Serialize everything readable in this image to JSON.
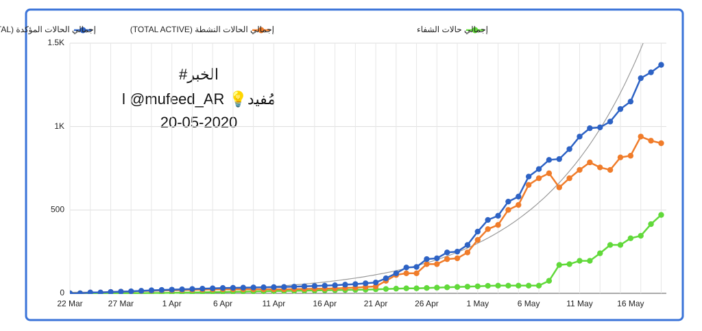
{
  "chart_data": {
    "type": "line",
    "annotations": [
      "#الخبر",
      "مُفيد💡 l @mufeed_AR",
      "20-05-2020"
    ],
    "categories": [
      "22 Mar",
      null,
      null,
      null,
      null,
      "27 Mar",
      null,
      null,
      null,
      null,
      "1 Apr",
      null,
      null,
      null,
      null,
      "6 Apr",
      null,
      null,
      null,
      null,
      "11 Apr",
      null,
      null,
      null,
      null,
      "16 Apr",
      null,
      null,
      null,
      null,
      "21 Apr",
      null,
      null,
      null,
      null,
      "26 Apr",
      null,
      null,
      null,
      null,
      "1 May",
      null,
      null,
      null,
      null,
      "6 May",
      null,
      null,
      null,
      null,
      "11 May",
      null,
      null,
      null,
      null,
      "16 May",
      null,
      null,
      null
    ],
    "series": [
      {
        "name": "إجمالي الحالات المؤكدة (TOTAL)",
        "color": "#2d62c4",
        "values": [
          0,
          0,
          5,
          5,
          8,
          10,
          12,
          15,
          18,
          20,
          22,
          24,
          26,
          28,
          30,
          32,
          33,
          34,
          35,
          36,
          37,
          38,
          40,
          42,
          44,
          46,
          48,
          52,
          55,
          60,
          65,
          90,
          120,
          155,
          158,
          205,
          210,
          245,
          250,
          290,
          370,
          440,
          465,
          550,
          580,
          700,
          745,
          800,
          805,
          865,
          940,
          990,
          995,
          1030,
          1105,
          1150,
          1290,
          1325,
          1370
        ]
      },
      {
        "name": "إجمالي الحالات النشطة (TOTAL ACTIVE)",
        "color": "#f07c2a",
        "values": [
          0,
          0,
          5,
          5,
          8,
          10,
          11,
          14,
          16,
          18,
          19,
          20,
          21,
          22,
          23,
          24,
          24,
          24,
          24,
          24,
          24,
          24,
          25,
          26,
          27,
          28,
          29,
          32,
          34,
          38,
          41,
          75,
          110,
          120,
          120,
          175,
          175,
          205,
          210,
          245,
          320,
          385,
          410,
          500,
          530,
          650,
          690,
          720,
          635,
          690,
          740,
          785,
          755,
          740,
          815,
          825,
          940,
          915,
          900
        ]
      },
      {
        "name": "إجمالي حالات الشفاء",
        "color": "#61d93a",
        "values": [
          0,
          0,
          0,
          0,
          0,
          0,
          1,
          1,
          2,
          2,
          3,
          4,
          5,
          6,
          7,
          8,
          9,
          10,
          11,
          12,
          13,
          14,
          15,
          16,
          17,
          18,
          19,
          20,
          21,
          22,
          24,
          26,
          28,
          30,
          30,
          32,
          34,
          36,
          38,
          40,
          42,
          45,
          46,
          46,
          46,
          46,
          46,
          75,
          170,
          175,
          195,
          195,
          240,
          290,
          290,
          330,
          345,
          415,
          470
        ]
      }
    ],
    "ylim": [
      0,
      1500
    ],
    "yticks": [
      0,
      500,
      {
        "value": 1000,
        "label": "1K"
      },
      {
        "value": 1500,
        "label": "1.5K"
      }
    ],
    "grid": true,
    "trendline": true,
    "legend": "top"
  }
}
